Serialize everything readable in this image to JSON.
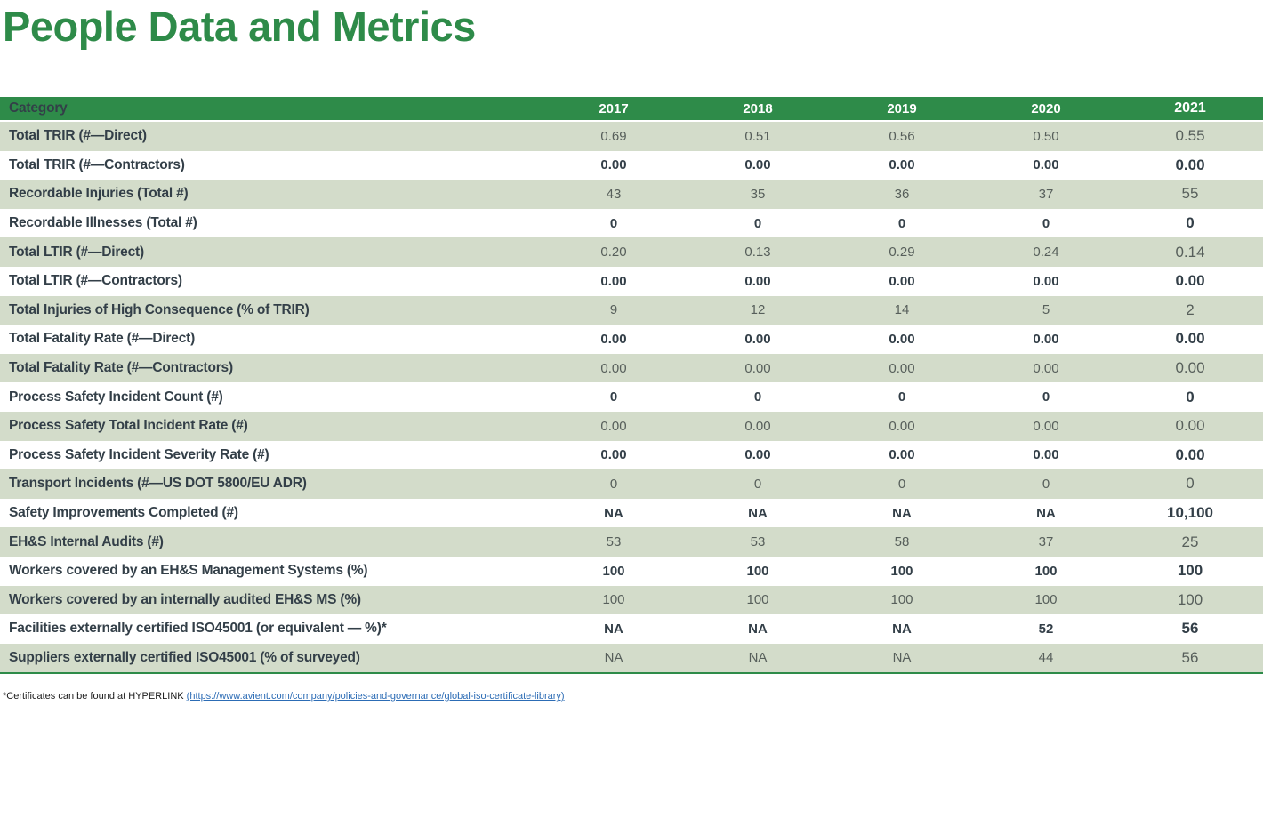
{
  "title": "People Data and Metrics",
  "colors": {
    "brand_green": "#2e8b49",
    "row_green": "#d3dcca",
    "label_dark": "#333f48",
    "value_gray": "#575f5b",
    "link_blue": "#2c6cb5"
  },
  "table": {
    "header": {
      "category_label": "Category",
      "years": [
        "2017",
        "2018",
        "2019",
        "2020",
        "2021"
      ]
    },
    "rows": [
      {
        "label": "Total TRIR (#—Direct)",
        "values": [
          "0.69",
          "0.51",
          "0.56",
          "0.50",
          "0.55"
        ]
      },
      {
        "label": "Total TRIR (#—Contractors)",
        "values": [
          "0.00",
          "0.00",
          "0.00",
          "0.00",
          "0.00"
        ]
      },
      {
        "label": "Recordable Injuries (Total #)",
        "values": [
          "43",
          "35",
          "36",
          "37",
          "55"
        ]
      },
      {
        "label": "Recordable Illnesses (Total #)",
        "values": [
          "0",
          "0",
          "0",
          "0",
          "0"
        ]
      },
      {
        "label": "Total LTIR (#—Direct)",
        "values": [
          "0.20",
          "0.13",
          "0.29",
          "0.24",
          "0.14"
        ]
      },
      {
        "label": "Total LTIR (#—Contractors)",
        "values": [
          "0.00",
          "0.00",
          "0.00",
          "0.00",
          "0.00"
        ]
      },
      {
        "label": "Total Injuries of High Consequence (% of TRIR)",
        "values": [
          "9",
          "12",
          "14",
          "5",
          "2"
        ]
      },
      {
        "label": "Total Fatality Rate (#—Direct)",
        "values": [
          "0.00",
          "0.00",
          "0.00",
          "0.00",
          "0.00"
        ]
      },
      {
        "label": "Total Fatality Rate (#—Contractors)",
        "values": [
          "0.00",
          "0.00",
          "0.00",
          "0.00",
          "0.00"
        ]
      },
      {
        "label": "Process Safety Incident Count (#)",
        "values": [
          "0",
          "0",
          "0",
          "0",
          "0"
        ]
      },
      {
        "label": "Process Safety Total Incident Rate (#)",
        "values": [
          "0.00",
          "0.00",
          "0.00",
          "0.00",
          "0.00"
        ]
      },
      {
        "label": "Process Safety Incident Severity Rate (#)",
        "values": [
          "0.00",
          "0.00",
          "0.00",
          "0.00",
          "0.00"
        ]
      },
      {
        "label": "Transport Incidents (#—US DOT 5800/EU ADR)",
        "values": [
          "0",
          "0",
          "0",
          "0",
          "0"
        ]
      },
      {
        "label": "Safety Improvements Completed (#)",
        "values": [
          "NA",
          "NA",
          "NA",
          "NA",
          "10,100"
        ]
      },
      {
        "label": "EH&S Internal Audits (#)",
        "values": [
          "53",
          "53",
          "58",
          "37",
          "25"
        ]
      },
      {
        "label": "Workers covered by an EH&S Management Systems (%)",
        "values": [
          "100",
          "100",
          "100",
          "100",
          "100"
        ]
      },
      {
        "label": "Workers covered by an internally audited EH&S MS (%)",
        "values": [
          "100",
          "100",
          "100",
          "100",
          "100"
        ]
      },
      {
        "label": "Facilities externally certified ISO45001 (or equivalent — %)*",
        "values": [
          "NA",
          "NA",
          "NA",
          "52",
          "56"
        ]
      },
      {
        "label": "Suppliers externally certified ISO45001 (% of surveyed)",
        "values": [
          "NA",
          "NA",
          "NA",
          "44",
          "56"
        ]
      }
    ]
  },
  "footnote": {
    "prefix": "*Certificates can be found at HYPERLINK ",
    "link_text": "(https://www.avient.com/company/policies-and-governance/global-iso-certificate-library)"
  }
}
